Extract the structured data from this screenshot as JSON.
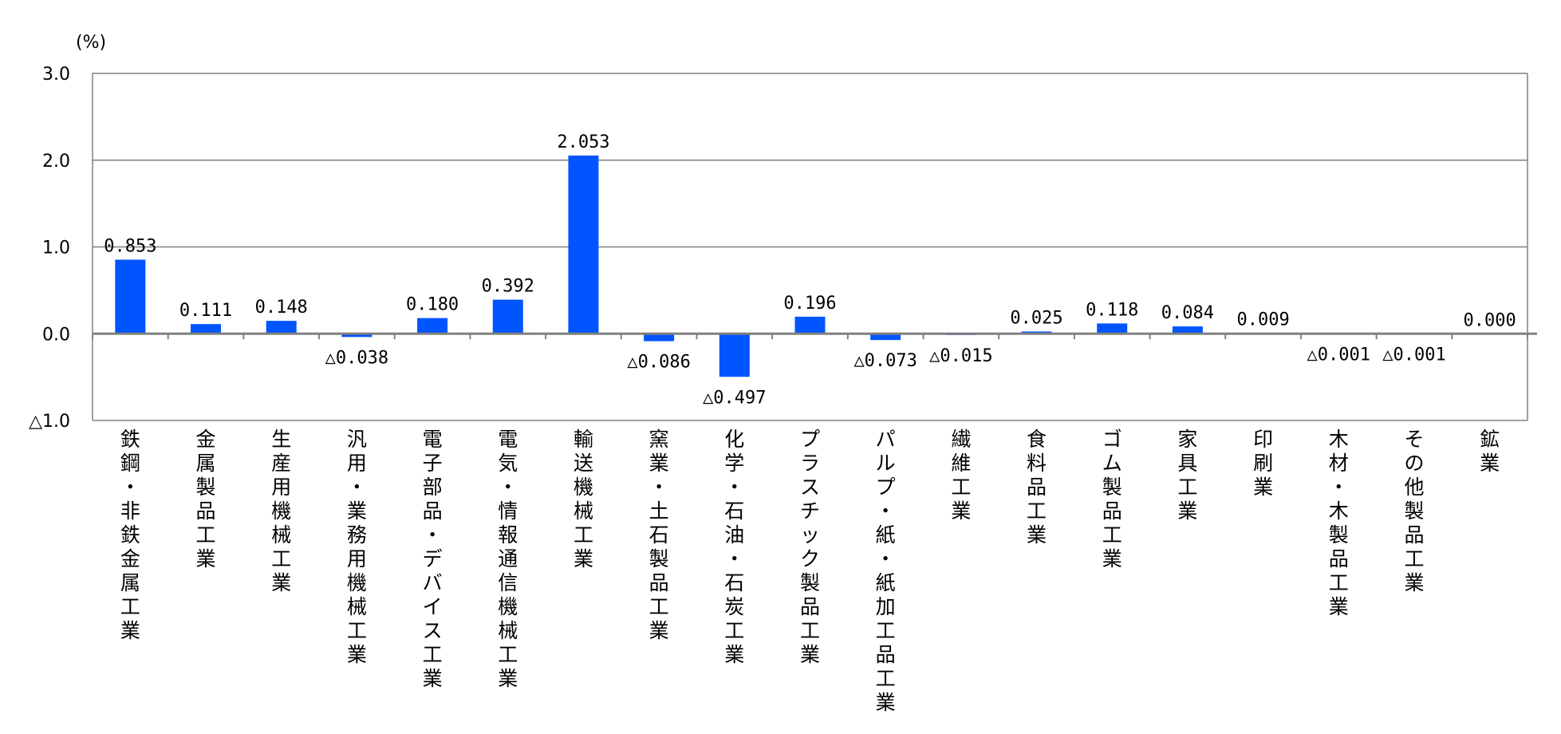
{
  "chart_data": {
    "type": "bar",
    "unit_label": "(%)",
    "ylim": [
      -1.0,
      3.0
    ],
    "y_ticks": [
      {
        "value": 3.0,
        "label": "3.0"
      },
      {
        "value": 2.0,
        "label": "2.0"
      },
      {
        "value": 1.0,
        "label": "1.0"
      },
      {
        "value": 0.0,
        "label": "0.0"
      },
      {
        "value": -1.0,
        "label": "△1.0"
      }
    ],
    "grid": true,
    "legend": "none",
    "colors": {
      "bar": "#0055FF",
      "grid": "#808080",
      "axis": "#808080"
    },
    "categories": [
      "鉄鋼・非鉄金属工業",
      "金属製品工業",
      "生産用機械工業",
      "汎用・業務用機械工業",
      "電子部品・デバイス工業",
      "電気・情報通信機械工業",
      "輸送機械工業",
      "窯業・土石製品工業",
      "化学・石油・石炭工業",
      "プラスチック製品工業",
      "パルプ・紙・紙加工品工業",
      "繊維工業",
      "食料品工業",
      "ゴム製品工業",
      "家具工業",
      "印刷業",
      "木材・木製品工業",
      "その他製品工業",
      "鉱業"
    ],
    "values": [
      0.853,
      0.111,
      0.148,
      -0.038,
      0.18,
      0.392,
      2.053,
      -0.086,
      -0.497,
      0.196,
      -0.073,
      -0.015,
      0.025,
      0.118,
      0.084,
      0.009,
      -0.001,
      -0.001,
      0.0
    ],
    "data_labels": [
      "0.853",
      "0.111",
      "0.148",
      "△0.038",
      "0.180",
      "0.392",
      "2.053",
      "△0.086",
      "△0.497",
      "0.196",
      "△0.073",
      "△0.015",
      "0.025",
      "0.118",
      "0.084",
      "0.009",
      "△0.001",
      "△0.001",
      "0.000"
    ]
  }
}
